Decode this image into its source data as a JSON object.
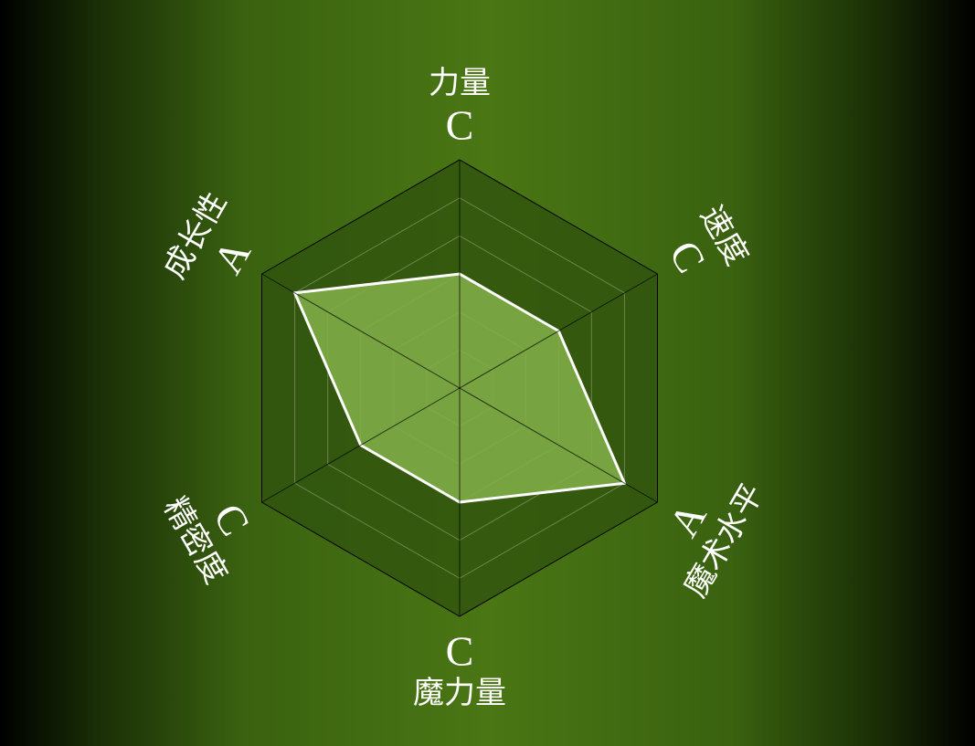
{
  "colors": {
    "background_center": "#4a7614",
    "background_edge": "#000000",
    "hexagon_fill": "#2f520d",
    "grid_line": "#9aa884",
    "axis_line": "#000000",
    "data_fill": "#84b04a",
    "data_stroke": "#ffffff",
    "text": "#ffffff"
  },
  "chart_data": {
    "type": "radar",
    "levels": 6,
    "range": [
      0,
      6
    ],
    "axes": [
      {
        "name": "力量",
        "grade": "C",
        "value": 3
      },
      {
        "name": "速度",
        "grade": "C",
        "value": 3
      },
      {
        "name": "魔术水平",
        "grade": "A",
        "value": 5
      },
      {
        "name": "魔力量",
        "grade": "C",
        "value": 3
      },
      {
        "name": "精密度",
        "grade": "C",
        "value": 3
      },
      {
        "name": "成长性",
        "grade": "A",
        "value": 5
      }
    ]
  }
}
